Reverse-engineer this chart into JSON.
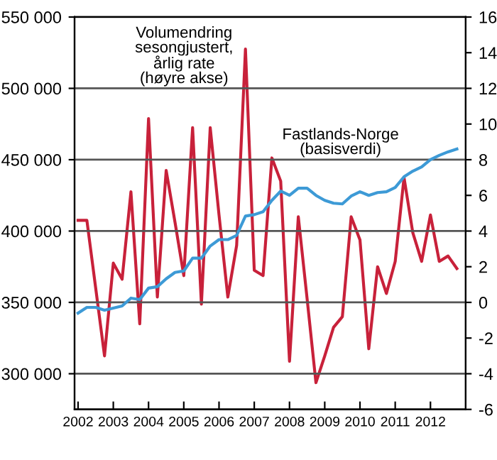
{
  "chart_data": {
    "type": "line",
    "x": [
      2002.0,
      2002.25,
      2002.5,
      2002.75,
      2003.0,
      2003.25,
      2003.5,
      2003.75,
      2004.0,
      2004.25,
      2004.5,
      2004.75,
      2005.0,
      2005.25,
      2005.5,
      2005.75,
      2006.0,
      2006.25,
      2006.5,
      2006.75,
      2007.0,
      2007.25,
      2007.5,
      2007.75,
      2008.0,
      2008.25,
      2008.5,
      2008.75,
      2009.0,
      2009.25,
      2009.5,
      2009.75,
      2010.0,
      2010.25,
      2010.5,
      2010.75,
      2011.0,
      2011.25,
      2011.5,
      2011.75,
      2012.0,
      2012.25,
      2012.5,
      2012.75
    ],
    "series": [
      {
        "color": "#3d9ad6",
        "values": [
          342500,
          346500,
          346500,
          344500,
          346000,
          347500,
          353000,
          352000,
          360000,
          361000,
          366500,
          371000,
          372000,
          381000,
          381000,
          389500,
          394000,
          394000,
          397000,
          410500,
          411500,
          413500,
          421500,
          428000,
          425000,
          430000,
          430000,
          425000,
          421500,
          419500,
          419000,
          424500,
          427500,
          425000,
          427000,
          427500,
          430500,
          438000,
          442000,
          445000,
          450000,
          453000,
          455500,
          457500
        ]
      },
      {
        "color": "#c8213a",
        "axis": "y2",
        "values": [
          4.6,
          4.6,
          0.8,
          -3.0,
          2.2,
          1.3,
          6.2,
          -1.2,
          10.3,
          0.3,
          7.4,
          4.5,
          1.5,
          9.8,
          -0.1,
          9.8,
          4.9,
          0.3,
          3.2,
          14.2,
          1.8,
          1.5,
          8.1,
          6.8,
          -3.3,
          4.8,
          0.2,
          -4.5,
          -3.0,
          -1.4,
          -0.8,
          4.8,
          3.5,
          -2.6,
          2.0,
          0.5,
          2.3,
          7.0,
          3.9,
          2.3,
          4.9,
          2.3,
          2.6,
          1.9
        ]
      }
    ],
    "xlim": [
      2001.9,
      2013.0
    ],
    "xticks": [
      2002,
      2003,
      2004,
      2005,
      2006,
      2007,
      2008,
      2009,
      2010,
      2011,
      2012
    ],
    "ylim": [
      275000,
      550000
    ],
    "yticks": [
      {
        "value": 300000,
        "label": "300 000"
      },
      {
        "value": 350000,
        "label": "350 000"
      },
      {
        "value": 400000,
        "label": "400 000"
      },
      {
        "value": 450000,
        "label": "450 000"
      },
      {
        "value": 500000,
        "label": "500 000"
      },
      {
        "value": 550000,
        "label": "550 000"
      }
    ],
    "y2lim": [
      -6,
      16
    ],
    "y2ticks": [
      -6,
      -4,
      -2,
      0,
      2,
      4,
      6,
      8,
      10,
      12,
      14,
      16
    ],
    "grid": "y",
    "annotations": [
      "Volumendring\nsesongjustert,\nårlig rate\n(høyre akse)",
      "Fastlands-Norge\n(basisverdi)"
    ]
  }
}
